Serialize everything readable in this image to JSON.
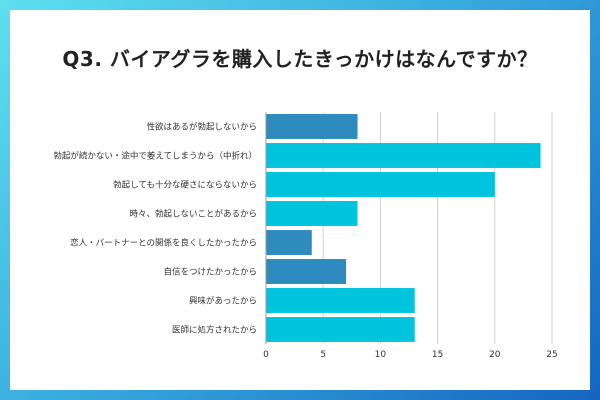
{
  "title": "Q3. バイアグラを購入したきっかけはなんですか？",
  "colors": {
    "dark_bar": "#2e8bbd",
    "light_bar": "#00c4de",
    "grid": "#d0d0d0"
  },
  "chart_data": {
    "type": "bar",
    "orientation": "horizontal",
    "categories": [
      "性欲はあるが勃起しないから",
      "勃起が続かない・途中で萎えてしまうから（中折れ）",
      "勃起しても十分な硬さにならないから",
      "時々、勃起しないことがあるから",
      "恋人・パートナーとの関係を良くしたかったから",
      "自信をつけたかったから",
      "興味があったから",
      "医師に処方されたから"
    ],
    "values": [
      8,
      24,
      20,
      8,
      4,
      7,
      13,
      13
    ],
    "bar_colors": [
      "#2e8bbd",
      "#00c4de",
      "#00c4de",
      "#00c4de",
      "#2e8bbd",
      "#2e8bbd",
      "#00c4de",
      "#00c4de"
    ],
    "xlim": [
      0,
      25
    ],
    "xticks": [
      0,
      5,
      10,
      15,
      20,
      25
    ],
    "grid": true
  }
}
